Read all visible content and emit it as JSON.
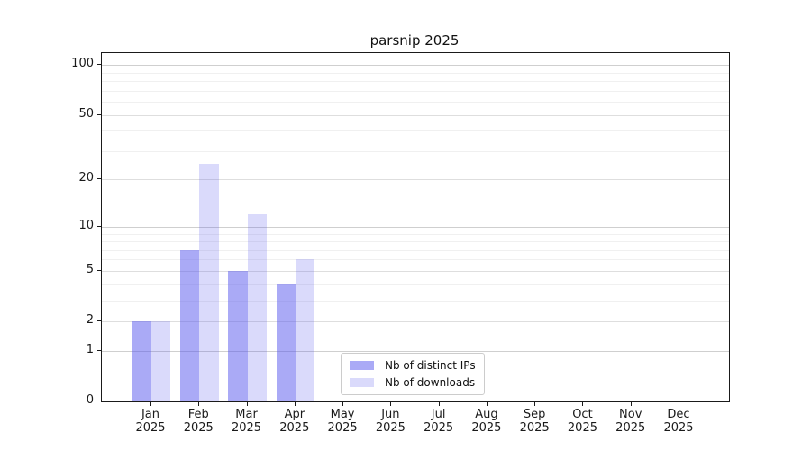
{
  "chart_data": {
    "type": "bar",
    "title": "parsnip 2025",
    "x_tick_months": [
      "Jan",
      "Feb",
      "Mar",
      "Apr",
      "May",
      "Jun",
      "Jul",
      "Aug",
      "Sep",
      "Oct",
      "Nov",
      "Dec"
    ],
    "x_tick_year": "2025",
    "series": [
      {
        "name": "Nb of distinct IPs",
        "color": "rgba(85,85,238,0.5)",
        "values": [
          2,
          7,
          5,
          4,
          0,
          0,
          0,
          0,
          0,
          0,
          0,
          0
        ]
      },
      {
        "name": "Nb of downloads",
        "color": "rgba(85,85,238,0.22)",
        "values": [
          2,
          25,
          12,
          6,
          0,
          0,
          0,
          0,
          0,
          0,
          0,
          0
        ]
      }
    ],
    "yticks": [
      0,
      1,
      2,
      5,
      10,
      20,
      50,
      100
    ],
    "minor_yticks": [
      3,
      4,
      6,
      7,
      8,
      9,
      30,
      40,
      60,
      70,
      80,
      90
    ],
    "ylim": [
      0,
      118
    ],
    "scale": "log1p",
    "grid": "both",
    "legend_position": "lower-center",
    "background": "#ffffff",
    "spine_color": "#1a1a1a"
  }
}
